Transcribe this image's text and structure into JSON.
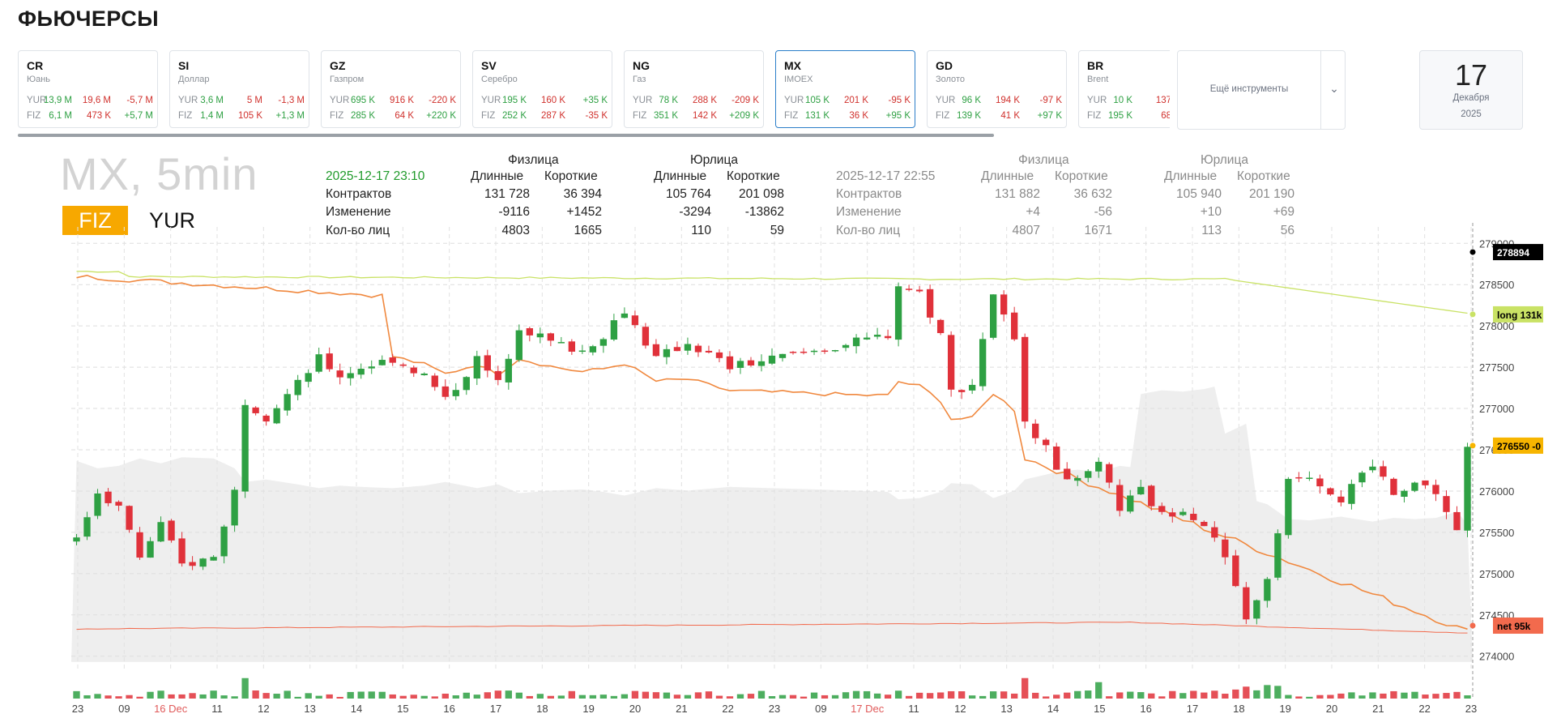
{
  "page_title": "ФЬЮЧЕРСЫ",
  "cards": [
    {
      "ticker": "CR",
      "name": "Юань",
      "active": false,
      "yur": [
        "13,9 M",
        "19,6 M",
        "-5,7 M"
      ],
      "fiz": [
        "6,1 M",
        "473 K",
        "+5,7 M"
      ]
    },
    {
      "ticker": "SI",
      "name": "Доллар",
      "active": false,
      "yur": [
        "3,6 M",
        "5 M",
        "-1,3 M"
      ],
      "fiz": [
        "1,4 M",
        "105 K",
        "+1,3 M"
      ]
    },
    {
      "ticker": "GZ",
      "name": "Газпром",
      "active": false,
      "yur": [
        "695 K",
        "916 K",
        "-220 K"
      ],
      "fiz": [
        "285 K",
        "64 K",
        "+220 K"
      ]
    },
    {
      "ticker": "SV",
      "name": "Серебро",
      "active": false,
      "yur": [
        "195 K",
        "160 K",
        "+35 K"
      ],
      "fiz": [
        "252 K",
        "287 K",
        "-35 K"
      ]
    },
    {
      "ticker": "NG",
      "name": "Газ",
      "active": false,
      "yur": [
        "78 K",
        "288 K",
        "-209 K"
      ],
      "fiz": [
        "351 K",
        "142 K",
        "+209 K"
      ]
    },
    {
      "ticker": "MX",
      "name": "IMOEX",
      "active": true,
      "yur": [
        "105 K",
        "201 K",
        "-95 K"
      ],
      "fiz": [
        "131 K",
        "36 K",
        "+95 K"
      ]
    },
    {
      "ticker": "GD",
      "name": "Золото",
      "active": false,
      "yur": [
        "96 K",
        "194 K",
        "-97 K"
      ],
      "fiz": [
        "139 K",
        "41 K",
        "+97 K"
      ]
    },
    {
      "ticker": "BR",
      "name": "Brent",
      "active": false,
      "yur": [
        "10 K",
        "137",
        ""
      ],
      "fiz": [
        "195 K",
        "68",
        ""
      ]
    }
  ],
  "labels": {
    "yur": "YUR",
    "fiz": "FIZ"
  },
  "more_label": "Ещё инструменты",
  "date": {
    "day": "17",
    "month": "Декабря",
    "year": "2025"
  },
  "chart_title": "MX, 5min",
  "toggle": {
    "fiz": "FIZ",
    "yur": "YUR"
  },
  "stats": {
    "current": {
      "timestamp": "2025-12-17 23:10",
      "fiz_header": "Физлица",
      "yur_header": "Юрлица",
      "col_long": "Длинные",
      "col_short": "Короткие",
      "rows": [
        {
          "label": "Контрактов",
          "fiz_long": "131 728",
          "fiz_short": "36 394",
          "yur_long": "105 764",
          "yur_short": "201 098"
        },
        {
          "label": "Изменение",
          "fiz_long": "-9116",
          "fiz_short": "+1452",
          "yur_long": "-3294",
          "yur_short": "-13862"
        },
        {
          "label": "Кол-во лиц",
          "fiz_long": "4803",
          "fiz_short": "1665",
          "yur_long": "110",
          "yur_short": "59"
        }
      ]
    },
    "previous": {
      "timestamp": "2025-12-17 22:55",
      "fiz_header": "Физлица",
      "yur_header": "Юрлица",
      "col_long": "Длинные",
      "col_short": "Короткие",
      "rows": [
        {
          "label": "Контрактов",
          "fiz_long": "131 882",
          "fiz_short": "36 632",
          "yur_long": "105 940",
          "yur_short": "201 190"
        },
        {
          "label": "Изменение",
          "fiz_long": "+4",
          "fiz_short": "-56",
          "yur_long": "+10",
          "yur_short": "+69"
        },
        {
          "label": "Кол-во лиц",
          "fiz_long": "4807",
          "fiz_short": "1671",
          "yur_long": "113",
          "yur_short": "56"
        }
      ]
    }
  },
  "chart_data": {
    "type": "candlestick",
    "y_ticks": [
      274000,
      274500,
      275000,
      275500,
      276000,
      276500,
      277000,
      277500,
      278000,
      278500,
      279000
    ],
    "ylim": [
      273850,
      279150
    ],
    "x_ticks": [
      "23",
      "09",
      "16 Dec",
      "11",
      "12",
      "13",
      "14",
      "15",
      "16",
      "17",
      "18",
      "19",
      "20",
      "21",
      "22",
      "23",
      "09",
      "17 Dec",
      "11",
      "12",
      "13",
      "14",
      "15",
      "16",
      "17",
      "18",
      "19",
      "20",
      "21",
      "22",
      "23"
    ],
    "highlight_ticks": [
      "16 Dec",
      "17 Dec"
    ],
    "markers": [
      {
        "label": "278894",
        "value": 278894,
        "color": "#000000",
        "text_color": "#ffffff"
      },
      {
        "label": "long 131k",
        "value": 278140,
        "color": "#c9e265",
        "text_color": "#000000"
      },
      {
        "label": "276550 -0",
        "value": 276550,
        "color": "#f7b500",
        "text_color": "#000000"
      },
      {
        "label": "net 95k",
        "value": 274370,
        "color": "#f26a4d",
        "text_color": "#000000"
      }
    ],
    "price_path": [
      [
        0,
        275400
      ],
      [
        2,
        276000
      ],
      [
        4,
        275800
      ],
      [
        6,
        275200
      ],
      [
        8,
        275600
      ],
      [
        10,
        275100
      ],
      [
        13,
        275200
      ],
      [
        15,
        276000
      ],
      [
        16,
        277100
      ],
      [
        18,
        276900
      ],
      [
        21,
        277300
      ],
      [
        23,
        277600
      ],
      [
        25,
        277400
      ],
      [
        27,
        277500
      ],
      [
        30,
        277600
      ],
      [
        33,
        277400
      ],
      [
        35,
        277100
      ],
      [
        38,
        277600
      ],
      [
        40,
        277300
      ],
      [
        42,
        278000
      ],
      [
        45,
        277800
      ],
      [
        48,
        277700
      ],
      [
        50,
        277900
      ],
      [
        52,
        278200
      ],
      [
        55,
        277600
      ],
      [
        58,
        277800
      ],
      [
        62,
        277500
      ],
      [
        66,
        277600
      ],
      [
        70,
        277700
      ],
      [
        74,
        277800
      ],
      [
        77,
        277900
      ],
      [
        78,
        278500
      ],
      [
        80,
        278400
      ],
      [
        82,
        277900
      ],
      [
        83,
        277200
      ],
      [
        85,
        277300
      ],
      [
        87,
        278400
      ],
      [
        89,
        277800
      ],
      [
        90,
        276900
      ],
      [
        93,
        276300
      ],
      [
        95,
        276100
      ],
      [
        97,
        276300
      ],
      [
        99,
        275800
      ],
      [
        101,
        276000
      ],
      [
        103,
        275700
      ],
      [
        105,
        275800
      ],
      [
        107,
        275600
      ],
      [
        109,
        275200
      ],
      [
        111,
        274400
      ],
      [
        113,
        274900
      ],
      [
        115,
        276100
      ],
      [
        117,
        276200
      ],
      [
        120,
        275900
      ],
      [
        123,
        276300
      ],
      [
        125,
        276000
      ],
      [
        127,
        276100
      ],
      [
        129,
        276000
      ],
      [
        131,
        275500
      ],
      [
        132,
        276500
      ]
    ],
    "volume_series": "per-candle bars, green up / red down",
    "series": [
      {
        "name": "long",
        "color": "#c9e265"
      },
      {
        "name": "net",
        "color": "#f26a4d"
      }
    ]
  },
  "colors": {
    "up": "#2ea043",
    "down": "#e0313a",
    "fiz_line": "#f0883e",
    "long_line": "#c9e265",
    "net_line": "#f26a4d",
    "area": "#ececec",
    "accent": "#f7a800"
  }
}
